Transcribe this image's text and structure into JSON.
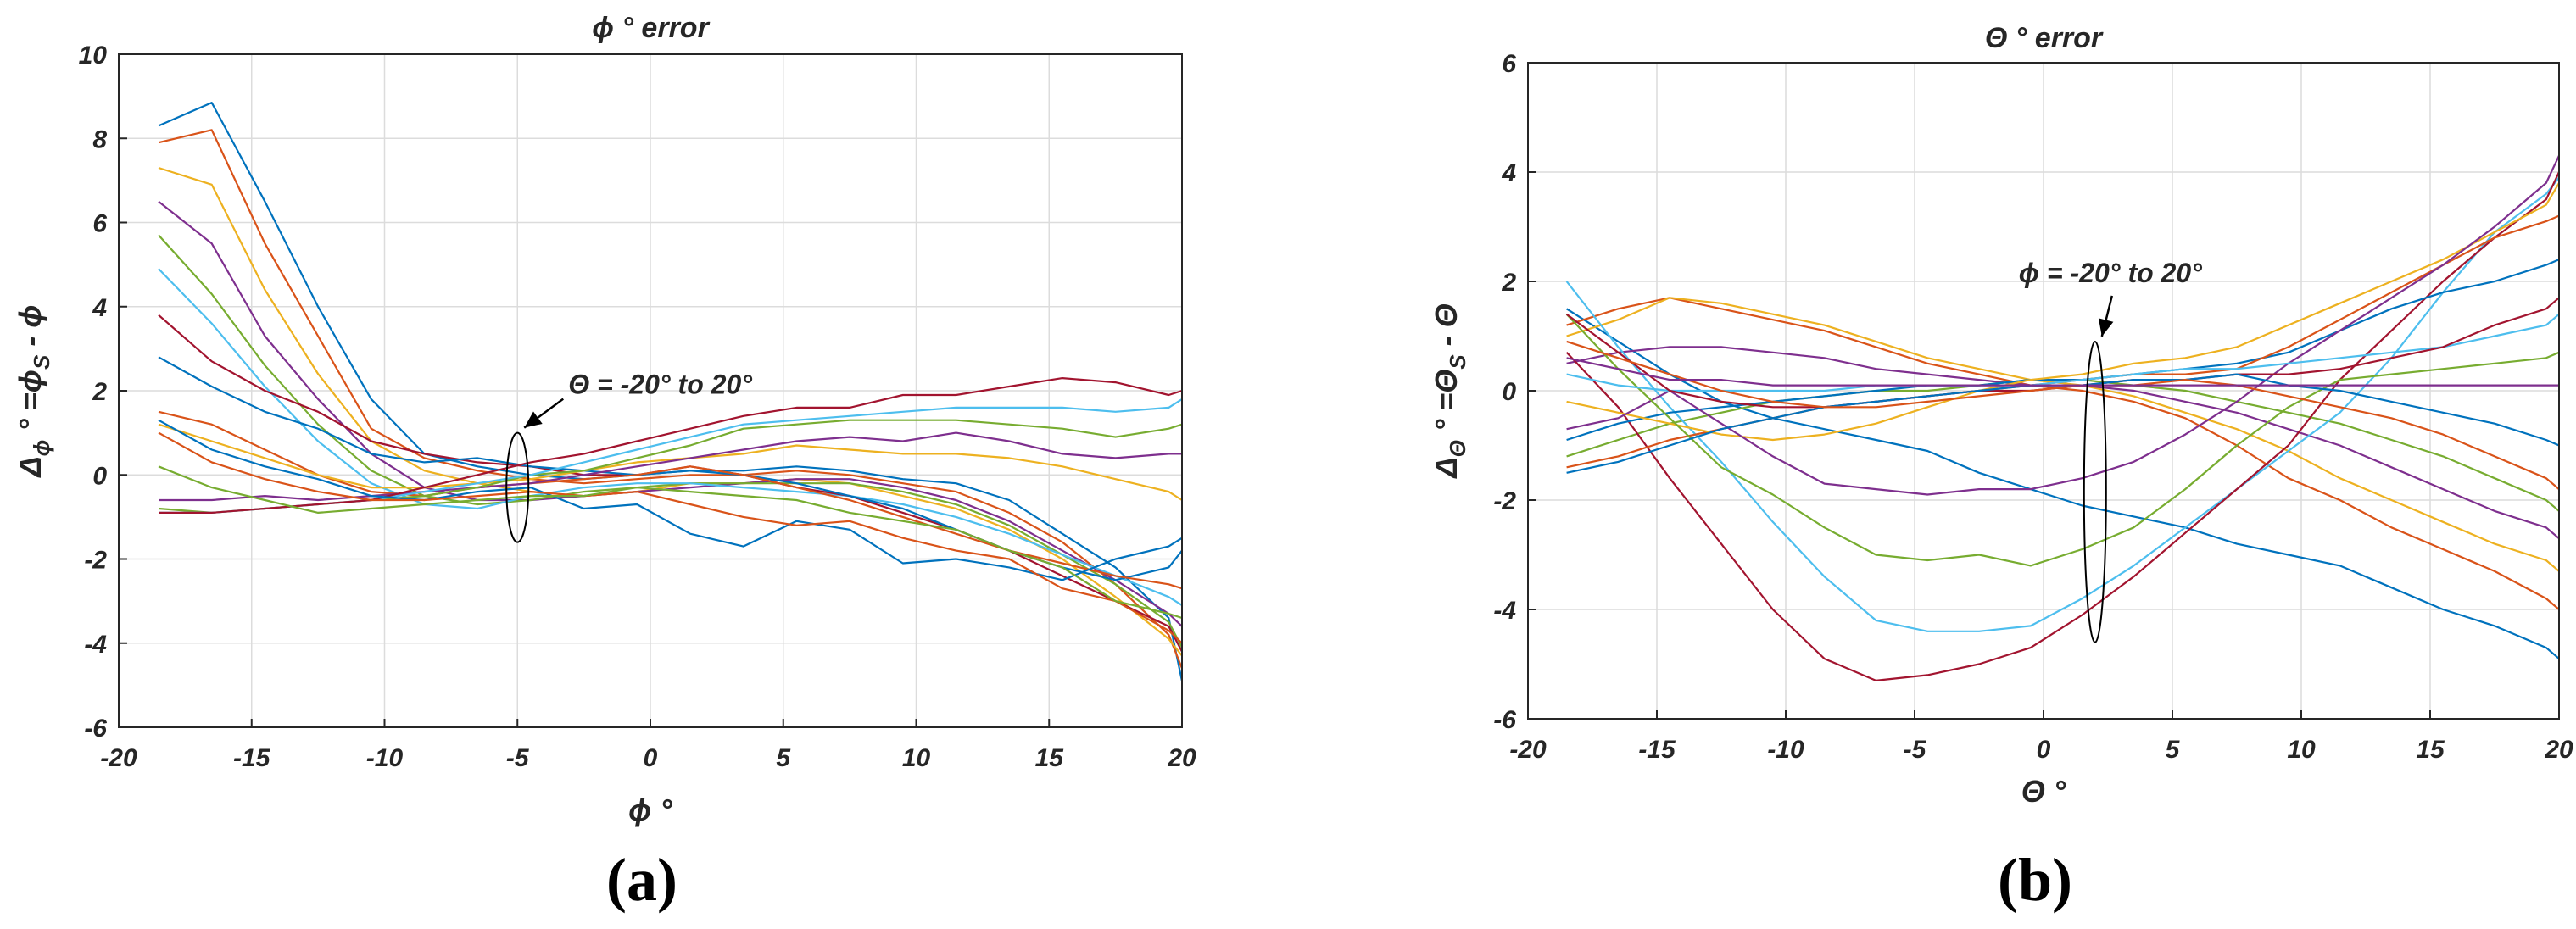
{
  "chart_data": [
    {
      "id": "a",
      "type": "line",
      "title": "ϕ ° error",
      "xlabel": "ϕ °",
      "ylabel_parts": [
        "Δ",
        "ϕ",
        " ° =ϕ",
        "S",
        " - ϕ"
      ],
      "xlim": [
        -20,
        20
      ],
      "ylim": [
        -6,
        10
      ],
      "xticks": [
        "-20",
        "-15",
        "-10",
        "-5",
        "0",
        "5",
        "10",
        "15",
        "20"
      ],
      "yticks": [
        "-6",
        "-4",
        "-2",
        "0",
        "2",
        "4",
        "6",
        "8",
        "10"
      ],
      "grid": true,
      "panel_label": "(a)",
      "annotation": {
        "text": "Θ = -20° to 20°",
        "x": -5,
        "y_min": -1.6,
        "y_max": 1.0
      },
      "x": [
        -18.5,
        -16.5,
        -14.5,
        -12.5,
        -10.5,
        -8.5,
        -6.5,
        -4.5,
        -2.5,
        -0.5,
        1.5,
        3.5,
        5.5,
        7.5,
        9.5,
        11.5,
        13.5,
        15.5,
        17.5,
        19.5,
        20
      ],
      "series": [
        {
          "color": "#0072BD",
          "values": [
            8.3,
            8.85,
            6.5,
            4.0,
            1.8,
            0.5,
            0.2,
            0.0,
            -0.1,
            0.0,
            0.1,
            0.1,
            0.2,
            0.1,
            -0.1,
            -0.2,
            -0.6,
            -1.4,
            -2.2,
            -3.4,
            -4.9
          ]
        },
        {
          "color": "#D95319",
          "values": [
            7.9,
            8.2,
            5.5,
            3.3,
            1.1,
            0.4,
            0.1,
            -0.1,
            -0.2,
            -0.1,
            0.0,
            0.0,
            0.1,
            0.0,
            -0.2,
            -0.4,
            -0.9,
            -1.6,
            -2.6,
            -3.8,
            -4.6
          ]
        },
        {
          "color": "#EDB120",
          "values": [
            7.3,
            6.9,
            4.4,
            2.4,
            0.8,
            0.1,
            -0.2,
            -0.4,
            -0.5,
            -0.4,
            -0.2,
            -0.2,
            -0.1,
            -0.2,
            -0.5,
            -0.8,
            -1.3,
            -2.0,
            -2.9,
            -3.9,
            -4.3
          ]
        },
        {
          "color": "#7E2F8E",
          "values": [
            6.5,
            5.5,
            3.3,
            1.8,
            0.5,
            -0.3,
            -0.6,
            -0.6,
            -0.5,
            -0.4,
            -0.3,
            -0.2,
            -0.1,
            -0.1,
            -0.3,
            -0.6,
            -1.1,
            -1.8,
            -2.5,
            -3.3,
            -3.6
          ]
        },
        {
          "color": "#77AC30",
          "values": [
            5.7,
            4.3,
            2.6,
            1.2,
            0.1,
            -0.5,
            -0.7,
            -0.6,
            -0.4,
            -0.3,
            -0.2,
            -0.2,
            -0.2,
            -0.2,
            -0.4,
            -0.7,
            -1.2,
            -1.9,
            -2.6,
            -3.5,
            -4.1
          ]
        },
        {
          "color": "#4DBEEE",
          "values": [
            4.9,
            3.6,
            2.1,
            0.8,
            -0.2,
            -0.7,
            -0.8,
            -0.5,
            -0.3,
            -0.2,
            -0.2,
            -0.3,
            -0.4,
            -0.5,
            -0.7,
            -1.0,
            -1.4,
            -1.9,
            -2.4,
            -2.9,
            -3.1
          ]
        },
        {
          "color": "#A2142F",
          "values": [
            3.8,
            2.7,
            2.0,
            1.5,
            0.8,
            0.5,
            0.3,
            0.2,
            0.0,
            0.0,
            0.2,
            0.0,
            -0.3,
            -0.5,
            -0.9,
            -1.3,
            -1.8,
            -2.4,
            -3.0,
            -3.6,
            -4.2
          ]
        },
        {
          "color": "#0072BD",
          "values": [
            2.8,
            2.1,
            1.5,
            1.1,
            0.5,
            0.3,
            0.4,
            0.2,
            0.1,
            0.0,
            0.1,
            0.0,
            -0.2,
            -0.5,
            -0.8,
            -1.3,
            -1.8,
            -2.2,
            -2.5,
            -2.2,
            -1.8
          ]
        },
        {
          "color": "#D95319",
          "values": [
            1.5,
            1.2,
            0.6,
            0.0,
            -0.4,
            -0.5,
            -0.3,
            -0.2,
            -0.1,
            0.0,
            0.2,
            0.0,
            -0.3,
            -0.6,
            -1.0,
            -1.4,
            -1.8,
            -2.1,
            -2.4,
            -2.6,
            -2.7
          ]
        },
        {
          "color": "#EDB120",
          "values": [
            1.2,
            0.8,
            0.4,
            0.0,
            -0.3,
            -0.3,
            -0.2,
            -0.1,
            0.1,
            0.3,
            0.4,
            0.5,
            0.7,
            0.6,
            0.5,
            0.5,
            0.4,
            0.2,
            -0.1,
            -0.4,
            -0.6
          ]
        },
        {
          "color": "#7E2F8E",
          "values": [
            -0.6,
            -0.6,
            -0.5,
            -0.6,
            -0.5,
            -0.4,
            -0.3,
            -0.2,
            0.0,
            0.2,
            0.4,
            0.6,
            0.8,
            0.9,
            0.8,
            1.0,
            0.8,
            0.5,
            0.4,
            0.5,
            0.5
          ]
        },
        {
          "color": "#77AC30",
          "values": [
            -0.8,
            -0.9,
            -0.8,
            -0.7,
            -0.6,
            -0.5,
            -0.3,
            0.0,
            0.1,
            0.4,
            0.7,
            1.1,
            1.2,
            1.3,
            1.3,
            1.3,
            1.2,
            1.1,
            0.9,
            1.1,
            1.2
          ]
        },
        {
          "color": "#4DBEEE",
          "values": [
            -0.9,
            -0.9,
            -0.8,
            -0.7,
            -0.6,
            -0.4,
            -0.2,
            0.0,
            0.3,
            0.6,
            0.9,
            1.2,
            1.3,
            1.4,
            1.5,
            1.6,
            1.6,
            1.6,
            1.5,
            1.6,
            1.8
          ]
        },
        {
          "color": "#A2142F",
          "values": [
            -0.9,
            -0.9,
            -0.8,
            -0.7,
            -0.6,
            -0.3,
            0.0,
            0.3,
            0.5,
            0.8,
            1.1,
            1.4,
            1.6,
            1.6,
            1.9,
            1.9,
            2.1,
            2.3,
            2.2,
            1.9,
            2.0
          ]
        },
        {
          "color": "#0072BD",
          "values": [
            1.3,
            0.6,
            0.2,
            -0.1,
            -0.5,
            -0.6,
            -0.4,
            -0.3,
            -0.8,
            -0.7,
            -1.4,
            -1.7,
            -1.1,
            -1.3,
            -2.1,
            -2.0,
            -2.2,
            -2.5,
            -2.0,
            -1.7,
            -1.5
          ]
        },
        {
          "color": "#D95319",
          "values": [
            1.0,
            0.3,
            -0.1,
            -0.4,
            -0.6,
            -0.6,
            -0.5,
            -0.4,
            -0.5,
            -0.4,
            -0.7,
            -1.0,
            -1.2,
            -1.1,
            -1.5,
            -1.8,
            -2.0,
            -2.7,
            -3.0,
            -3.7,
            -4.0
          ]
        },
        {
          "color": "#77AC30",
          "values": [
            0.2,
            -0.3,
            -0.6,
            -0.9,
            -0.8,
            -0.7,
            -0.6,
            -0.5,
            -0.5,
            -0.3,
            -0.4,
            -0.5,
            -0.6,
            -0.9,
            -1.1,
            -1.3,
            -1.8,
            -2.2,
            -3.0,
            -3.3,
            -3.4
          ]
        }
      ]
    },
    {
      "id": "b",
      "type": "line",
      "title": "Θ ° error",
      "xlabel": "Θ °",
      "ylabel_parts": [
        "Δ",
        "Θ",
        " ° =Θ",
        "S",
        " - Θ"
      ],
      "xlim": [
        -20,
        20
      ],
      "ylim": [
        -6,
        6
      ],
      "xticks": [
        "-20",
        "-15",
        "-10",
        "-5",
        "0",
        "5",
        "10",
        "15",
        "20"
      ],
      "yticks": [
        "-6",
        "-4",
        "-2",
        "0",
        "2",
        "4",
        "6"
      ],
      "grid": true,
      "panel_label": "(b)",
      "annotation": {
        "text": "ϕ = -20° to 20°",
        "x": 2,
        "y_min": -4.6,
        "y_max": 0.9
      },
      "x": [
        -18.5,
        -16.5,
        -14.5,
        -12.5,
        -10.5,
        -8.5,
        -6.5,
        -4.5,
        -2.5,
        -0.5,
        1.5,
        3.5,
        5.5,
        7.5,
        9.5,
        11.5,
        13.5,
        15.5,
        17.5,
        19.5,
        20
      ],
      "series": [
        {
          "color": "#0072BD",
          "values": [
            1.5,
            0.9,
            0.3,
            -0.2,
            -0.5,
            -0.7,
            -0.9,
            -1.1,
            -1.5,
            -1.8,
            -2.1,
            -2.3,
            -2.5,
            -2.8,
            -3.0,
            -3.2,
            -3.6,
            -4.0,
            -4.3,
            -4.7,
            -4.9
          ]
        },
        {
          "color": "#D95319",
          "values": [
            1.2,
            1.5,
            1.7,
            1.5,
            1.3,
            1.1,
            0.8,
            0.5,
            0.3,
            0.1,
            0.0,
            -0.2,
            -0.5,
            -1.0,
            -1.6,
            -2.0,
            -2.5,
            -2.9,
            -3.3,
            -3.8,
            -4.0
          ]
        },
        {
          "color": "#EDB120",
          "values": [
            1.0,
            1.3,
            1.7,
            1.6,
            1.4,
            1.2,
            0.9,
            0.6,
            0.4,
            0.2,
            0.1,
            -0.1,
            -0.4,
            -0.7,
            -1.1,
            -1.6,
            -2.0,
            -2.4,
            -2.8,
            -3.1,
            -3.3
          ]
        },
        {
          "color": "#7E2F8E",
          "values": [
            0.5,
            0.7,
            0.8,
            0.8,
            0.7,
            0.6,
            0.4,
            0.3,
            0.2,
            0.1,
            0.1,
            0.0,
            -0.2,
            -0.4,
            -0.7,
            -1.0,
            -1.4,
            -1.8,
            -2.2,
            -2.5,
            -2.7
          ]
        },
        {
          "color": "#77AC30",
          "values": [
            -1.2,
            -0.9,
            -0.6,
            -0.4,
            -0.2,
            -0.1,
            0.0,
            0.0,
            0.1,
            0.2,
            0.2,
            0.1,
            0.0,
            -0.2,
            -0.4,
            -0.6,
            -0.9,
            -1.2,
            -1.6,
            -2.0,
            -2.2
          ]
        },
        {
          "color": "#4DBEEE",
          "values": [
            2.0,
            0.8,
            -0.3,
            -1.3,
            -2.4,
            -3.4,
            -4.2,
            -4.4,
            -4.4,
            -4.3,
            -3.8,
            -3.2,
            -2.5,
            -1.8,
            -1.1,
            -0.4,
            0.6,
            1.8,
            2.9,
            3.6,
            3.9
          ]
        },
        {
          "color": "#A2142F",
          "values": [
            0.7,
            -0.3,
            -1.6,
            -2.8,
            -4.0,
            -4.9,
            -5.3,
            -5.2,
            -5.0,
            -4.7,
            -4.1,
            -3.4,
            -2.6,
            -1.8,
            -1.0,
            0.2,
            1.1,
            2.0,
            2.8,
            3.5,
            4.0
          ]
        },
        {
          "color": "#0072BD",
          "values": [
            -0.9,
            -0.6,
            -0.4,
            -0.3,
            -0.2,
            -0.1,
            0.0,
            0.1,
            0.1,
            0.2,
            0.2,
            0.3,
            0.4,
            0.5,
            0.7,
            1.1,
            1.5,
            1.8,
            2.0,
            2.3,
            2.4
          ]
        },
        {
          "color": "#D95319",
          "values": [
            -1.4,
            -1.2,
            -0.9,
            -0.7,
            -0.5,
            -0.3,
            -0.2,
            -0.1,
            0.0,
            0.1,
            0.2,
            0.3,
            0.3,
            0.4,
            0.8,
            1.3,
            1.8,
            2.3,
            2.8,
            3.1,
            3.2
          ]
        },
        {
          "color": "#EDB120",
          "values": [
            -0.2,
            -0.4,
            -0.6,
            -0.8,
            -0.9,
            -0.8,
            -0.6,
            -0.3,
            0.0,
            0.2,
            0.3,
            0.5,
            0.6,
            0.8,
            1.2,
            1.6,
            2.0,
            2.4,
            2.9,
            3.4,
            3.8
          ]
        },
        {
          "color": "#7E2F8E",
          "values": [
            -0.7,
            -0.5,
            0.0,
            -0.6,
            -1.2,
            -1.7,
            -1.8,
            -1.9,
            -1.8,
            -1.8,
            -1.6,
            -1.3,
            -0.8,
            -0.2,
            0.5,
            1.1,
            1.7,
            2.3,
            3.0,
            3.8,
            4.3
          ]
        },
        {
          "color": "#77AC30",
          "values": [
            1.4,
            0.4,
            -0.5,
            -1.4,
            -1.9,
            -2.5,
            -3.0,
            -3.1,
            -3.0,
            -3.2,
            -2.9,
            -2.5,
            -1.8,
            -1.0,
            -0.3,
            0.2,
            0.3,
            0.4,
            0.5,
            0.6,
            0.7
          ]
        },
        {
          "color": "#4DBEEE",
          "values": [
            0.3,
            0.1,
            0.0,
            0.0,
            0.0,
            0.0,
            0.1,
            0.1,
            0.1,
            0.1,
            0.2,
            0.3,
            0.4,
            0.4,
            0.5,
            0.6,
            0.7,
            0.8,
            1.0,
            1.2,
            1.4
          ]
        },
        {
          "color": "#A2142F",
          "values": [
            1.4,
            0.7,
            0.0,
            -0.2,
            -0.3,
            -0.3,
            -0.2,
            -0.1,
            0.0,
            0.0,
            0.1,
            0.2,
            0.2,
            0.3,
            0.3,
            0.4,
            0.6,
            0.8,
            1.2,
            1.5,
            1.7
          ]
        },
        {
          "color": "#0072BD",
          "values": [
            -1.5,
            -1.3,
            -1.0,
            -0.7,
            -0.5,
            -0.3,
            -0.2,
            -0.1,
            0.0,
            0.1,
            0.1,
            0.2,
            0.2,
            0.3,
            0.1,
            0.0,
            -0.2,
            -0.4,
            -0.6,
            -0.9,
            -1.0
          ]
        },
        {
          "color": "#D95319",
          "values": [
            0.9,
            0.6,
            0.3,
            0.0,
            -0.2,
            -0.3,
            -0.3,
            -0.2,
            -0.1,
            0.0,
            0.1,
            0.1,
            0.2,
            0.1,
            -0.1,
            -0.3,
            -0.5,
            -0.8,
            -1.2,
            -1.6,
            -1.8
          ]
        },
        {
          "color": "#7E2F8E",
          "values": [
            0.6,
            0.4,
            0.2,
            0.2,
            0.1,
            0.1,
            0.1,
            0.1,
            0.1,
            0.1,
            0.1,
            0.1,
            0.1,
            0.1,
            0.1,
            0.1,
            0.1,
            0.1,
            0.1,
            0.1,
            0.1
          ]
        }
      ]
    }
  ]
}
